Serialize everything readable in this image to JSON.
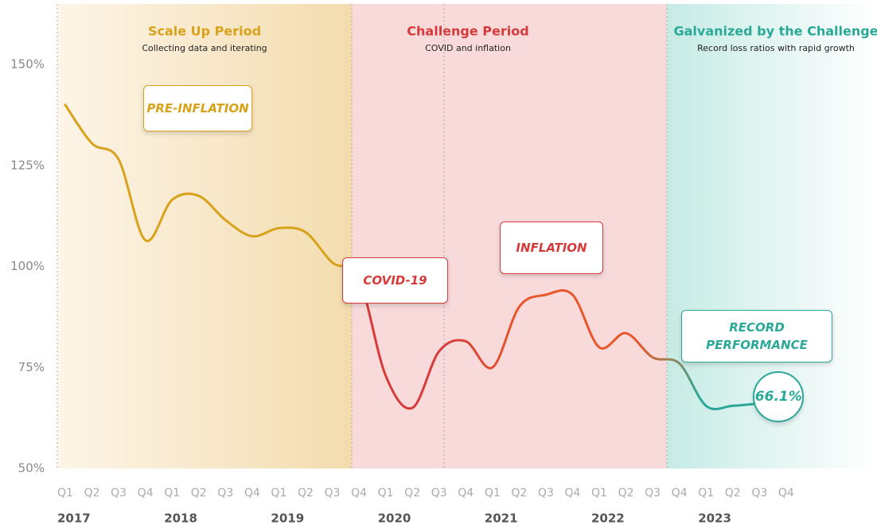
{
  "chart_data": {
    "type": "line",
    "periods": [
      {
        "title": "Scale Up Period",
        "subtitle": "Collecting data and iterating",
        "color": "#d9a21b",
        "band_colors": [
          "#fdf5e8",
          "#f3dcae"
        ]
      },
      {
        "title": "Challenge Period",
        "subtitle": "COVID and inflation",
        "color": "#d63a3a",
        "band_colors": [
          "#f8dadb",
          "#f8dadb"
        ]
      },
      {
        "title": "Galvanized by the Challenge",
        "subtitle": "Record loss ratios with rapid growth",
        "color": "#2aa898",
        "band_colors": [
          "#c6ebe4",
          "#ffffff"
        ]
      }
    ],
    "categories": [
      "Q1",
      "Q2",
      "Q3",
      "Q4",
      "Q1",
      "Q2",
      "Q3",
      "Q4",
      "Q1",
      "Q2",
      "Q3",
      "Q4",
      "Q1",
      "Q2",
      "Q3",
      "Q4",
      "Q1",
      "Q2",
      "Q3",
      "Q4",
      "Q1",
      "Q2",
      "Q3",
      "Q4",
      "Q1",
      "Q2",
      "Q3",
      "Q4"
    ],
    "year_labels": [
      "2017",
      null,
      null,
      null,
      "2018",
      null,
      null,
      null,
      "2019",
      null,
      null,
      null,
      "2020",
      null,
      null,
      null,
      "2021",
      null,
      null,
      null,
      "2022",
      null,
      null,
      null,
      "2023",
      null,
      null,
      null
    ],
    "series": [
      {
        "name": "Loss ratio",
        "color": "#e8562a",
        "values": [
          140,
          130.5,
          126.5,
          106.5,
          116.5,
          117.5,
          111.5,
          107.5,
          109.5,
          108.5,
          101,
          97,
          73,
          65,
          79,
          81.5,
          75,
          90,
          93,
          93,
          80,
          83.5,
          77.5,
          76,
          65.5,
          65.5,
          66.1,
          null
        ],
        "value_labels": [
          null,
          null,
          null,
          null,
          null,
          null,
          null,
          null,
          null,
          null,
          null,
          null,
          null,
          null,
          null,
          null,
          null,
          null,
          null,
          null,
          null,
          null,
          null,
          null,
          null,
          null,
          "66.1%",
          null
        ]
      }
    ],
    "annotations": [
      {
        "text": "PRE-INFLATION",
        "color": "#d9a21b"
      },
      {
        "text": "COVID-19",
        "color": "#d63a3a"
      },
      {
        "text": "INFLATION",
        "color": "#d63a3a"
      },
      {
        "text": "RECORD PERFORMANCE",
        "color": "#2aa898"
      }
    ],
    "ylim": [
      50,
      165
    ],
    "yticks": [
      {
        "value": 50,
        "label": "50%"
      },
      {
        "value": 75,
        "label": "75%"
      },
      {
        "value": 100,
        "label": "100%"
      },
      {
        "value": 125,
        "label": "125%"
      },
      {
        "value": 150,
        "label": "150%"
      }
    ]
  }
}
